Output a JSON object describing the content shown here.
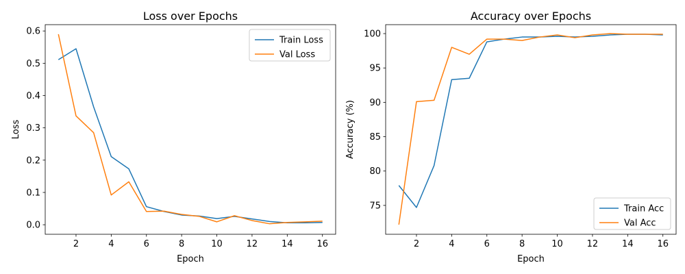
{
  "chart_data": [
    {
      "type": "line",
      "title": "Loss over Epochs",
      "xlabel": "Epoch",
      "ylabel": "Loss",
      "xlim": [
        0.25,
        16.75
      ],
      "ylim": [
        -0.0295,
        0.6195
      ],
      "xticks": [
        2,
        4,
        6,
        8,
        10,
        12,
        14,
        16
      ],
      "yticks": [
        0.0,
        0.1,
        0.2,
        0.3,
        0.4,
        0.5,
        0.6
      ],
      "ytick_labels": [
        "0.0",
        "0.1",
        "0.2",
        "0.3",
        "0.4",
        "0.5",
        "0.6"
      ],
      "x": [
        1,
        2,
        3,
        4,
        5,
        6,
        7,
        8,
        9,
        10,
        11,
        12,
        13,
        14,
        15,
        16
      ],
      "legend_position": "top-right",
      "grid": false,
      "series": [
        {
          "name": "Train Loss",
          "color": "#1f77b4",
          "values": [
            0.511,
            0.545,
            0.365,
            0.211,
            0.173,
            0.056,
            0.041,
            0.03,
            0.027,
            0.019,
            0.026,
            0.018,
            0.01,
            0.006,
            0.006,
            0.007
          ]
        },
        {
          "name": "Val Loss",
          "color": "#ff7f0e",
          "values": [
            0.59,
            0.337,
            0.285,
            0.092,
            0.133,
            0.041,
            0.042,
            0.032,
            0.026,
            0.009,
            0.028,
            0.013,
            0.003,
            0.007,
            0.009,
            0.011
          ]
        }
      ]
    },
    {
      "type": "line",
      "title": "Accuracy over Epochs",
      "xlabel": "Epoch",
      "ylabel": "Accuracy (%)",
      "xlim": [
        0.25,
        16.75
      ],
      "ylim": [
        70.8,
        101.3
      ],
      "xticks": [
        2,
        4,
        6,
        8,
        10,
        12,
        14,
        16
      ],
      "yticks": [
        75,
        80,
        85,
        90,
        95,
        100
      ],
      "ytick_labels": [
        "75",
        "80",
        "85",
        "90",
        "95",
        "100"
      ],
      "x": [
        1,
        2,
        3,
        4,
        5,
        6,
        7,
        8,
        9,
        10,
        11,
        12,
        13,
        14,
        15,
        16
      ],
      "legend_position": "bottom-right",
      "grid": false,
      "series": [
        {
          "name": "Train Acc",
          "color": "#1f77b4",
          "values": [
            77.9,
            74.7,
            80.8,
            93.3,
            93.5,
            98.8,
            99.2,
            99.5,
            99.5,
            99.6,
            99.5,
            99.6,
            99.8,
            99.9,
            99.9,
            99.8
          ]
        },
        {
          "name": "Val Acc",
          "color": "#ff7f0e",
          "values": [
            72.2,
            90.1,
            90.3,
            98.0,
            97.0,
            99.2,
            99.2,
            99.0,
            99.5,
            99.8,
            99.4,
            99.8,
            100.0,
            99.9,
            99.9,
            99.9
          ]
        }
      ]
    }
  ]
}
